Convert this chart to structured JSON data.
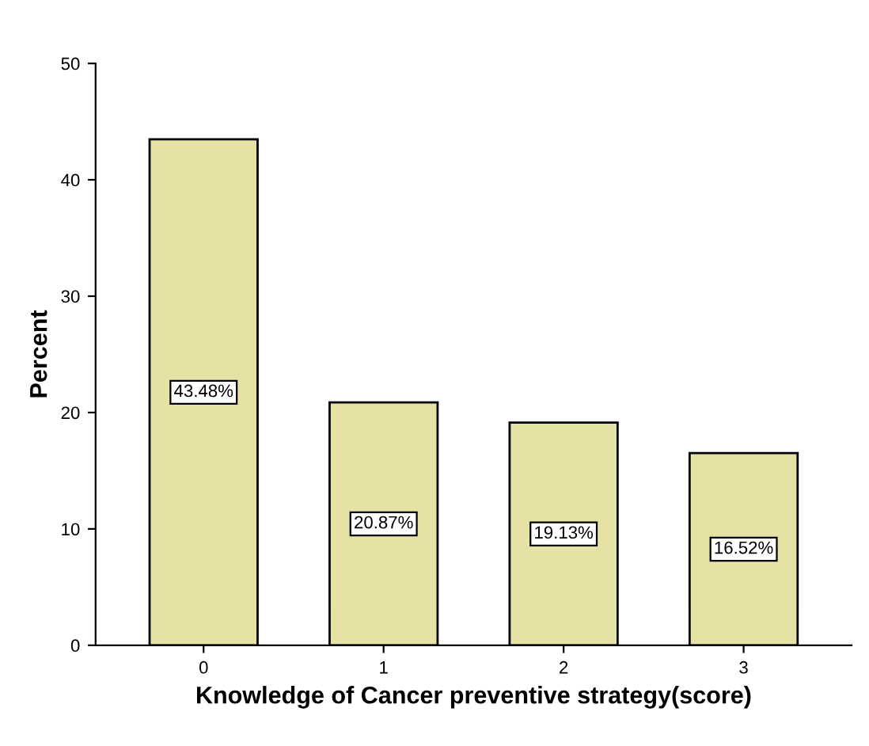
{
  "chart_data": {
    "type": "bar",
    "xlabel": "Knowledge of Cancer preventive strategy(score)",
    "ylabel": "Percent",
    "categories": [
      "0",
      "1",
      "2",
      "3"
    ],
    "values": [
      43.48,
      20.87,
      19.13,
      16.52
    ],
    "value_labels": [
      "43.48%",
      "20.87%",
      "19.13%",
      "16.52%"
    ],
    "color": "#e6e2a6",
    "ylim": [
      0,
      50
    ],
    "yticks": [
      0,
      10,
      20,
      30,
      40,
      50
    ],
    "grid": false
  }
}
